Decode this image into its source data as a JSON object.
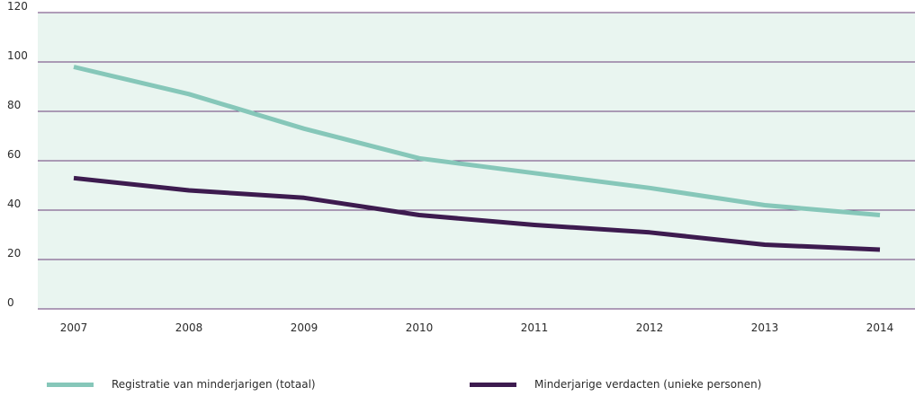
{
  "colors": {
    "background": "#e9f5f0",
    "gridline": "#6b3f7a",
    "series_registratie": "#86c7b9",
    "series_verdachten": "#3d1b4f"
  },
  "chart_data": {
    "type": "line",
    "x": [
      "2007",
      "2008",
      "2009",
      "2010",
      "2011",
      "2012",
      "2013",
      "2014"
    ],
    "ylim": [
      0,
      120
    ],
    "yticks": [
      "0",
      "20",
      "40",
      "60",
      "80",
      "100",
      "120"
    ],
    "grid": true,
    "legend_position": "bottom",
    "series": [
      {
        "name": "Registratie van minderjarigen (totaal)",
        "values": [
          98,
          87,
          73,
          61,
          55,
          49,
          42,
          38
        ],
        "color": "#86c7b9"
      },
      {
        "name": "Minderjarige verdacten (unieke personen)",
        "values": [
          53,
          48,
          45,
          38,
          34,
          31,
          26,
          24
        ],
        "color": "#3d1b4f"
      }
    ]
  }
}
